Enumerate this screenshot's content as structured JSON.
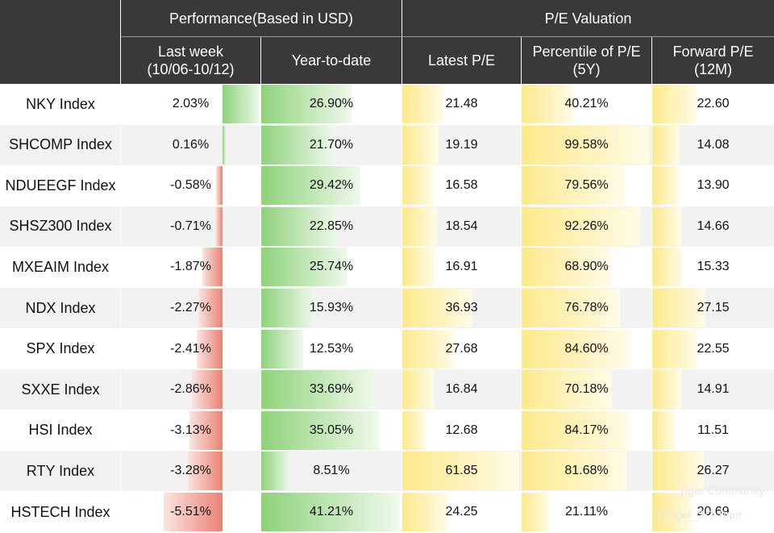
{
  "header": {
    "performance": "Performance(Based in USD)",
    "pe_valuation": "P/E Valuation",
    "last_week": "Last week",
    "last_week_range": "(10/06-10/12)",
    "ytd": "Year-to-date",
    "latest_pe": "Latest P/E",
    "percentile_pe": "Percentile of P/E",
    "percentile_pe_sub": "(5Y)",
    "forward_pe": "Forward P/E",
    "forward_pe_sub": "(12M)"
  },
  "colors": {
    "header_bg": "#3a3838",
    "green": "#8ed27a",
    "red": "#e98274",
    "yellow": "#fde98a"
  },
  "watermark": {
    "line1": "Tiger Community",
    "line2": "@Tiger_SG Tiger"
  },
  "chart_data": {
    "type": "table",
    "title": "Performance(Based in USD) / P/E Valuation",
    "rows": [
      {
        "index": "NKY Index",
        "last_week": "2.03%",
        "ytd": "26.90%",
        "latest_pe": "21.48",
        "percentile_pe": "40.21%",
        "forward_pe": "22.60"
      },
      {
        "index": "SHCOMP Index",
        "last_week": "0.16%",
        "ytd": "21.70%",
        "latest_pe": "19.19",
        "percentile_pe": "99.58%",
        "forward_pe": "14.08"
      },
      {
        "index": "NDUEEGF Index",
        "last_week": "-0.58%",
        "ytd": "29.42%",
        "latest_pe": "16.58",
        "percentile_pe": "79.56%",
        "forward_pe": "13.90"
      },
      {
        "index": "SHSZ300 Index",
        "last_week": "-0.71%",
        "ytd": "22.85%",
        "latest_pe": "18.54",
        "percentile_pe": "92.26%",
        "forward_pe": "14.66"
      },
      {
        "index": "MXEAIM Index",
        "last_week": "-1.87%",
        "ytd": "25.74%",
        "latest_pe": "16.91",
        "percentile_pe": "68.90%",
        "forward_pe": "15.33"
      },
      {
        "index": "NDX Index",
        "last_week": "-2.27%",
        "ytd": "15.93%",
        "latest_pe": "36.93",
        "percentile_pe": "76.78%",
        "forward_pe": "27.15"
      },
      {
        "index": "SPX Index",
        "last_week": "-2.41%",
        "ytd": "12.53%",
        "latest_pe": "27.68",
        "percentile_pe": "84.60%",
        "forward_pe": "22.55"
      },
      {
        "index": "SXXE Index",
        "last_week": "-2.86%",
        "ytd": "33.69%",
        "latest_pe": "16.84",
        "percentile_pe": "70.18%",
        "forward_pe": "14.91"
      },
      {
        "index": "HSI Index",
        "last_week": "-3.13%",
        "ytd": "35.05%",
        "latest_pe": "12.68",
        "percentile_pe": "84.17%",
        "forward_pe": "11.51"
      },
      {
        "index": "RTY Index",
        "last_week": "-3.28%",
        "ytd": "8.51%",
        "latest_pe": "61.85",
        "percentile_pe": "81.68%",
        "forward_pe": "26.27"
      },
      {
        "index": "HSTECH Index",
        "last_week": "-5.51%",
        "ytd": "41.21%",
        "latest_pe": "24.25",
        "percentile_pe": "21.11%",
        "forward_pe": "20.69"
      }
    ]
  }
}
